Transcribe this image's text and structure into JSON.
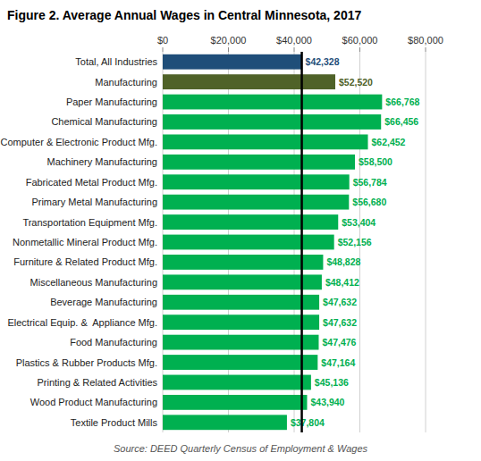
{
  "chart_data": {
    "type": "bar",
    "orientation": "horizontal",
    "title": "Figure 2. Average Annual Wages in Central Minnesota, 2017",
    "categories": [
      "Textile Product Mills",
      "Wood Product Manufacturing",
      "Printing & Related Activities",
      "Plastics & Rubber Products Mfg.",
      "Food Manufacturing",
      "Electrical Equip. &  Appliance Mfg.",
      "Beverage Manufacturing",
      "Miscellaneous Manufacturing",
      "Furniture & Related Product Mfg.",
      "Nonmetallic Mineral Product Mfg.",
      "Transportation Equipment Mfg.",
      "Primary Metal Manufacturing",
      "Fabricated Metal Product Mfg.",
      "Machinery Manufacturing",
      "Computer & Electronic Product Mfg.",
      "Chemical Manufacturing",
      "Paper Manufacturing",
      "Manufacturing",
      "Total, All Industries"
    ],
    "values": [
      37804,
      43940,
      45136,
      47164,
      47476,
      47632,
      47632,
      48412,
      48828,
      52156,
      53404,
      56680,
      56784,
      58500,
      62452,
      66456,
      66768,
      52520,
      42328
    ],
    "value_labels": [
      "$37,804",
      "$43,940",
      "$45,136",
      "$47,164",
      "$47,476",
      "$47,632",
      "$47,632",
      "$48,412",
      "$48,828",
      "$52,156",
      "$53,404",
      "$56,680",
      "$56,784",
      "$58,500",
      "$62,452",
      "$66,456",
      "$66,768",
      "$52,520",
      "$42,328"
    ],
    "colors": [
      "#00b050",
      "#00b050",
      "#00b050",
      "#00b050",
      "#00b050",
      "#00b050",
      "#00b050",
      "#00b050",
      "#00b050",
      "#00b050",
      "#00b050",
      "#00b050",
      "#00b050",
      "#00b050",
      "#00b050",
      "#00b050",
      "#00b050",
      "#4f6228",
      "#1f4e79"
    ],
    "data_labels": true,
    "reference_line": 42328,
    "xlim": [
      0,
      80000
    ],
    "xticks": [
      {
        "value": 0,
        "label": "$0"
      },
      {
        "value": 20000,
        "label": "$20,000"
      },
      {
        "value": 40000,
        "label": "$40,000"
      },
      {
        "value": 60000,
        "label": "$60,000"
      },
      {
        "value": 80000,
        "label": "$80,000"
      }
    ],
    "grid": true,
    "annotations": [
      {
        "text": "Source: DEED Quarterly Census of Employment & Wages"
      }
    ]
  }
}
